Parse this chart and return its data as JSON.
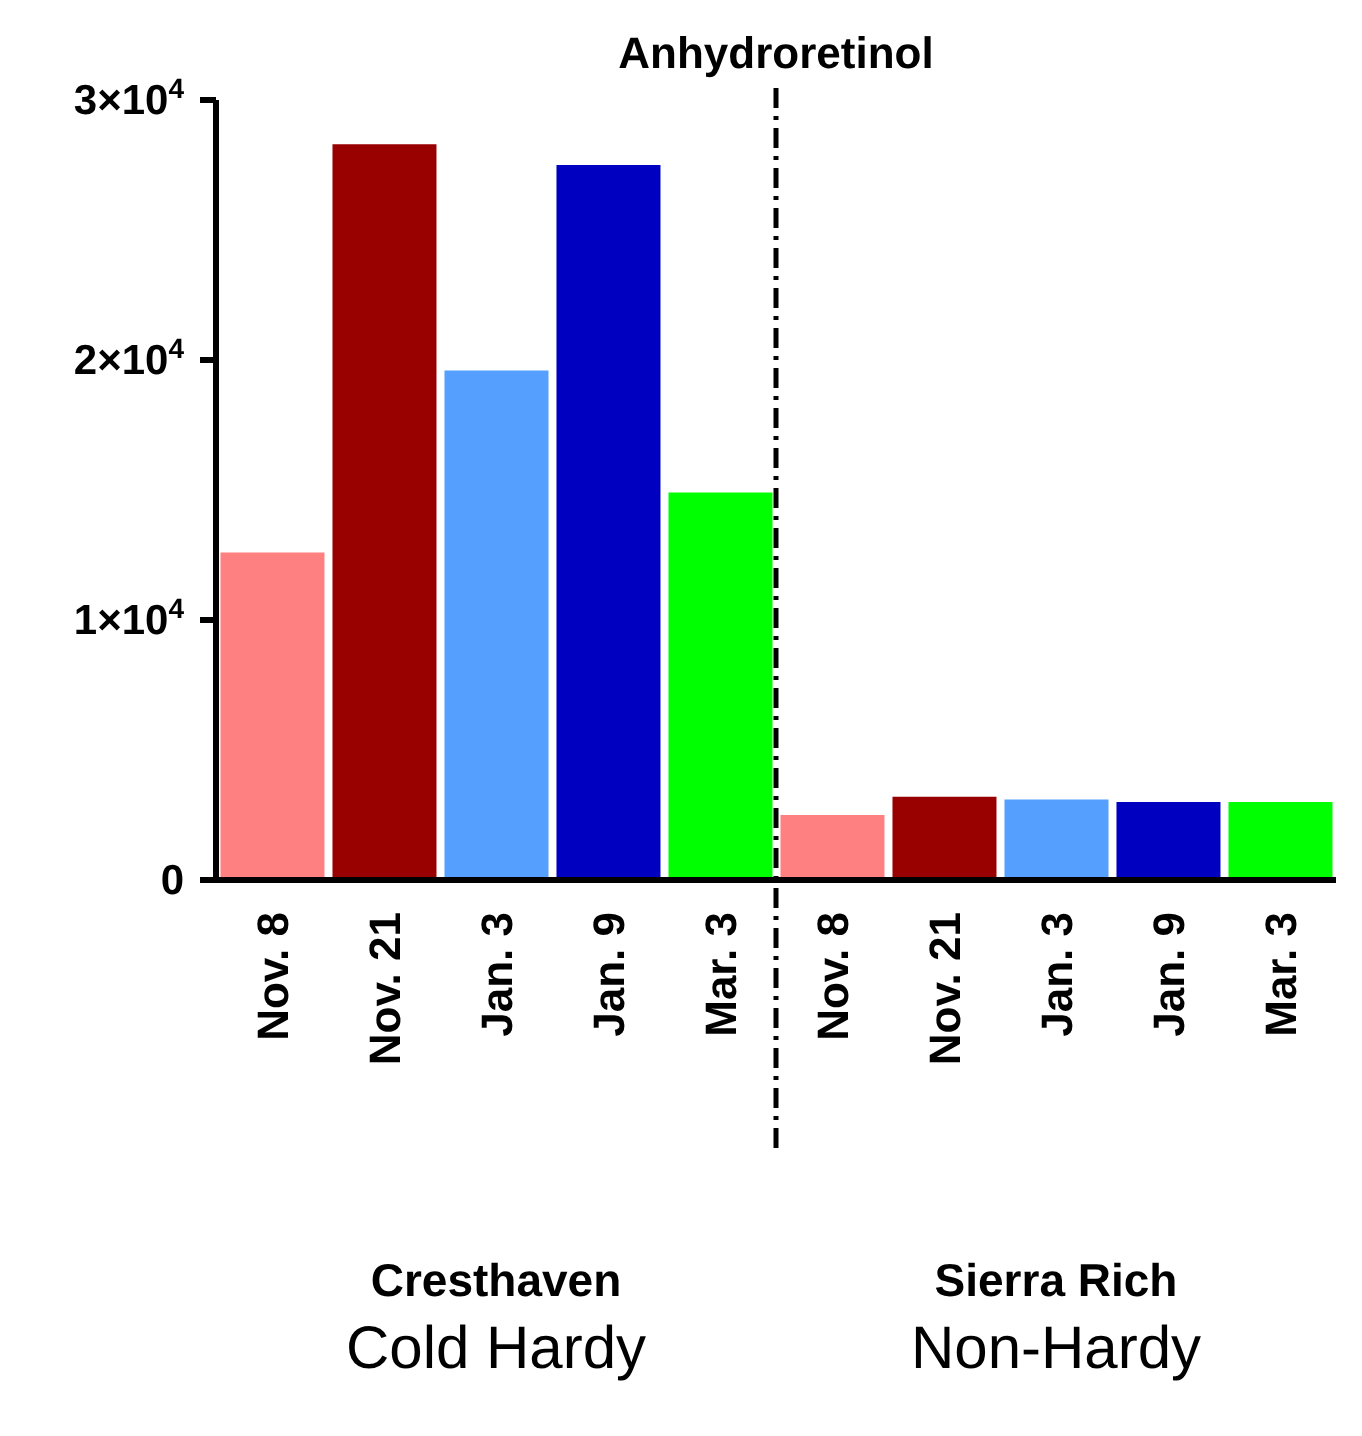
{
  "chart_data": {
    "type": "bar",
    "title": "Anhydroretinol",
    "categories": [
      "Nov. 8",
      "Nov. 21",
      "Jan. 3",
      "Jan. 9",
      "Mar. 3",
      "Nov. 8",
      "Nov. 21",
      "Jan. 3",
      "Jan. 9",
      "Mar. 3"
    ],
    "values": [
      12600,
      28300,
      19600,
      27500,
      14900,
      2500,
      3200,
      3100,
      3000,
      3000
    ],
    "colors": [
      "#ff8080",
      "#990000",
      "#55a0ff",
      "#0000c0",
      "#00ff00",
      "#ff8080",
      "#990000",
      "#55a0ff",
      "#0000c0",
      "#00ff00"
    ],
    "ylim": [
      0,
      30000
    ],
    "yticks": [
      0,
      {
        "value": 10000,
        "label": "1×10$^{4}$"
      },
      {
        "value": 20000,
        "label": "2×10$^{4}$"
      },
      {
        "value": 30000,
        "label": "3×10$^{4}$"
      }
    ],
    "annotations": [
      "Cresthaven",
      "Cold Hardy",
      "Sierra Rich",
      "Non-Hardy"
    ]
  }
}
